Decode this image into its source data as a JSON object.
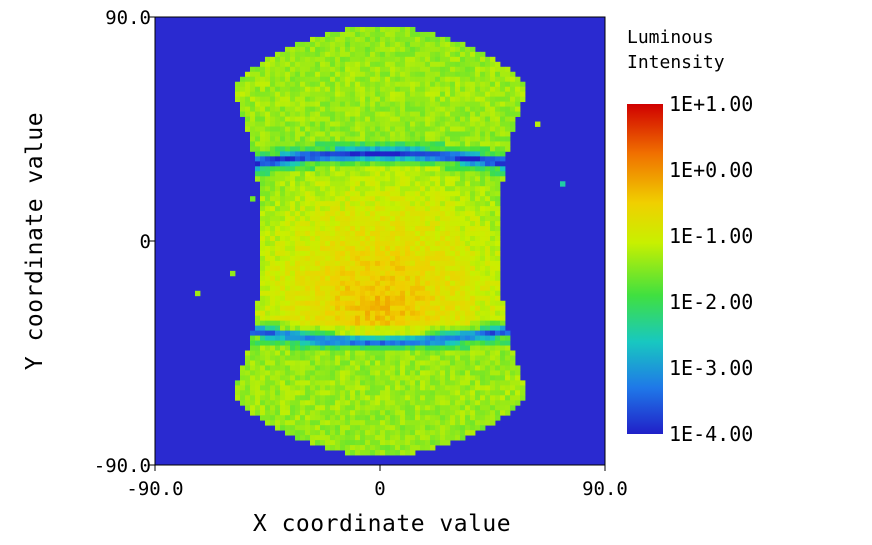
{
  "chart_data": {
    "type": "heatmap",
    "title": "",
    "xlabel": "X coordinate value",
    "ylabel": "Y coordinate value",
    "xlim": [
      -90.0,
      90.0
    ],
    "ylim": [
      -90.0,
      90.0
    ],
    "x_ticks": [
      {
        "value": -90,
        "label": "-90.0"
      },
      {
        "value": 0,
        "label": "0"
      },
      {
        "value": 90,
        "label": "90.0"
      }
    ],
    "y_ticks": [
      {
        "value": 90,
        "label": "90.0"
      },
      {
        "value": 0,
        "label": "0"
      },
      {
        "value": -90,
        "label": "-90.0"
      }
    ],
    "grid": false,
    "colorbar": {
      "title_line1": "Luminous",
      "title_line2": "Intensity",
      "scale": "log",
      "range": [
        -4,
        1
      ],
      "labels": [
        "1E+1.00",
        "1E+0.00",
        "1E-1.00",
        "1E-2.00",
        "1E-3.00",
        "1E-4.00"
      ],
      "colormap": [
        "#2020c8",
        "#1f78e8",
        "#18c8c0",
        "#40e040",
        "#c8f000",
        "#f0d000",
        "#f07000",
        "#d00000"
      ]
    },
    "background_color": "#2a2ad0",
    "pattern": {
      "description_free": true,
      "central_peak_log": -0.3,
      "central_peak_x": 0,
      "central_peak_y": -25,
      "outer_band_log": -1.5,
      "dark_band_y": [
        35,
        -40
      ]
    }
  }
}
